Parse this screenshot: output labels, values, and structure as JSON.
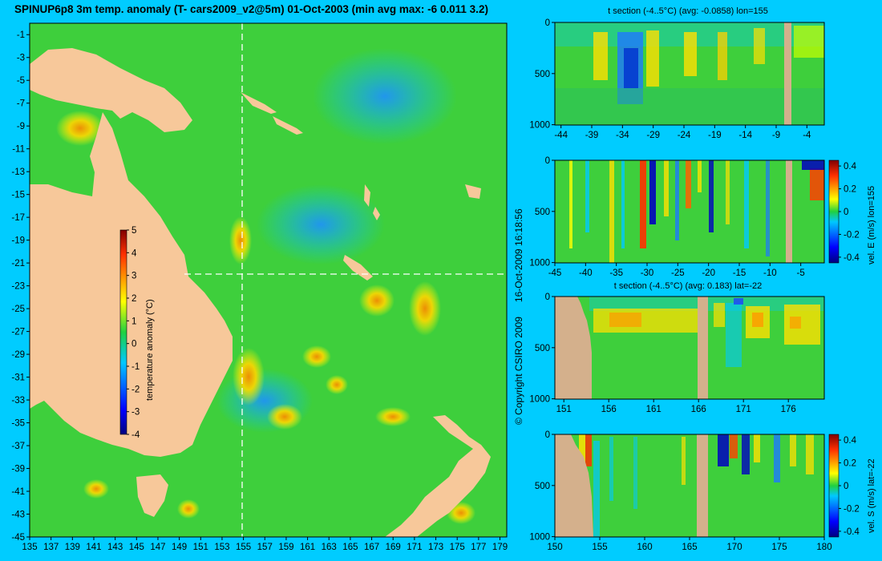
{
  "title": "SPINUP6p8 3m temp. anomaly (T- cars2009_v2@5m) 01-Oct-2003 (min avg max: -6 0.011 3.2)",
  "copyright": "© Copyright CSIRO 2009",
  "timestamp": "16-Oct-2009 16:18:56",
  "colors": {
    "background": "#00ccff",
    "land": "#f7c89a",
    "section_land": "#d4b08c",
    "crosshair": "#ffffff"
  },
  "chart_data": [
    {
      "type": "heatmap",
      "name": "main-map",
      "x_ticks": [
        "135",
        "137",
        "139",
        "141",
        "143",
        "145",
        "147",
        "149",
        "151",
        "153",
        "155",
        "157",
        "159",
        "161",
        "163",
        "165",
        "167",
        "169",
        "171",
        "173",
        "175",
        "177",
        "179"
      ],
      "xlim": [
        135,
        180
      ],
      "y_ticks": [
        "-1",
        "-3",
        "-5",
        "-7",
        "-9",
        "-11",
        "-13",
        "-15",
        "-17",
        "-19",
        "-21",
        "-23",
        "-25",
        "-27",
        "-29",
        "-31",
        "-33",
        "-35",
        "-37",
        "-39",
        "-41",
        "-43",
        "-45"
      ],
      "ylim": [
        -45,
        0
      ],
      "crosshair": {
        "lon": 155,
        "lat": -22
      },
      "colorbar": {
        "label": "temperature anomaly (°C)",
        "ticks": [
          "5",
          "4",
          "3",
          "2",
          "1",
          "0",
          "-1",
          "-2",
          "-3",
          "-4"
        ],
        "range": [
          -4,
          5
        ]
      }
    },
    {
      "type": "heatmap",
      "name": "t-section-lon",
      "title": "t section (-4..5°C) (avg: -0.0858) lon=155",
      "x_ticks": [
        "-44",
        "-39",
        "-34",
        "-29",
        "-24",
        "-19",
        "-14",
        "-9",
        "-4"
      ],
      "xlim": [
        -45,
        0
      ],
      "y_ticks": [
        "0",
        "500",
        "1000"
      ],
      "ylim": [
        1050,
        0
      ]
    },
    {
      "type": "heatmap",
      "name": "vel-e-section",
      "x_ticks": [
        "-45",
        "-40",
        "-35",
        "-30",
        "-25",
        "-20",
        "-15",
        "-10",
        "-5"
      ],
      "xlim": [
        -45,
        0
      ],
      "y_ticks": [
        "0",
        "500",
        "1000"
      ],
      "ylim": [
        1050,
        0
      ],
      "colorbar": {
        "label": "vel. E (m/s) lon=155",
        "ticks": [
          "0.4",
          "0.2",
          "0",
          "-0.2",
          "-0.4"
        ],
        "range": [
          -0.45,
          0.45
        ]
      }
    },
    {
      "type": "heatmap",
      "name": "t-section-lat",
      "title": "t section (-4..5°C) (avg: 0.183) lat=-22",
      "x_ticks": [
        "151",
        "156",
        "161",
        "166",
        "171",
        "176"
      ],
      "xlim": [
        150,
        180
      ],
      "y_ticks": [
        "0",
        "500",
        "1000"
      ],
      "ylim": [
        1050,
        0
      ]
    },
    {
      "type": "heatmap",
      "name": "vel-s-section",
      "x_ticks": [
        "150",
        "155",
        "160",
        "165",
        "170",
        "175",
        "180"
      ],
      "xlim": [
        150,
        180
      ],
      "y_ticks": [
        "0",
        "500",
        "1000"
      ],
      "ylim": [
        1050,
        0
      ],
      "colorbar": {
        "label": "vel. S (m/s) lat=-22",
        "ticks": [
          "0.4",
          "0.2",
          "0",
          "-0.2",
          "-0.4"
        ],
        "range": [
          -0.45,
          0.45
        ]
      }
    }
  ]
}
